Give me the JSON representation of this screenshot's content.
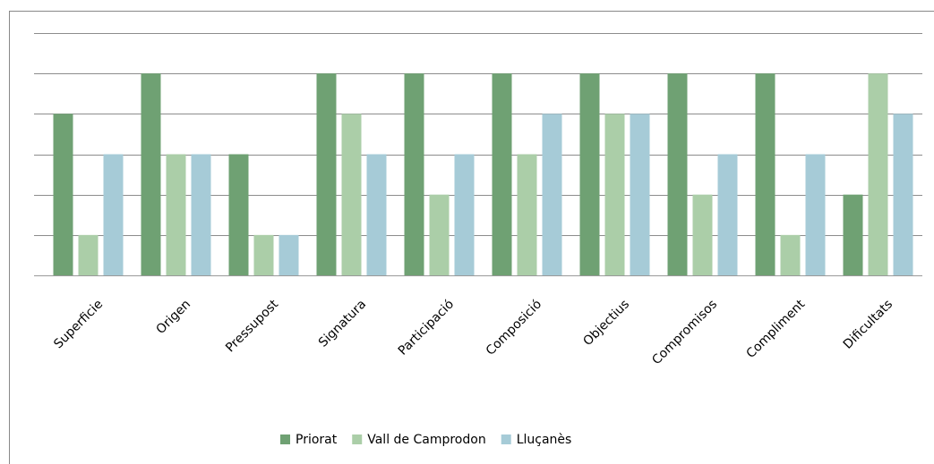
{
  "chart_data": {
    "type": "bar",
    "categories": [
      "Superficie",
      "Origen",
      "Pressupost",
      "Signatura",
      "Participació",
      "Composició",
      "Objectius",
      "Compromisos",
      "Compliment",
      "Dificultats"
    ],
    "series": [
      {
        "name": "Priorat",
        "color": "#6fa173",
        "values": [
          4,
          5,
          3,
          5,
          5,
          5,
          5,
          5,
          5,
          2
        ]
      },
      {
        "name": "Vall de Camprodon",
        "color": "#abcea8",
        "values": [
          1,
          3,
          1,
          4,
          2,
          3,
          4,
          2,
          1,
          5
        ]
      },
      {
        "name": "Lluçanès",
        "color": "#a6cbd7",
        "values": [
          3,
          3,
          1,
          3,
          3,
          4,
          4,
          3,
          3,
          4
        ]
      }
    ],
    "ylim": [
      0,
      6
    ],
    "yticks": [
      0,
      1,
      2,
      3,
      4,
      5,
      6
    ],
    "grid": true,
    "legend": "bottom"
  }
}
